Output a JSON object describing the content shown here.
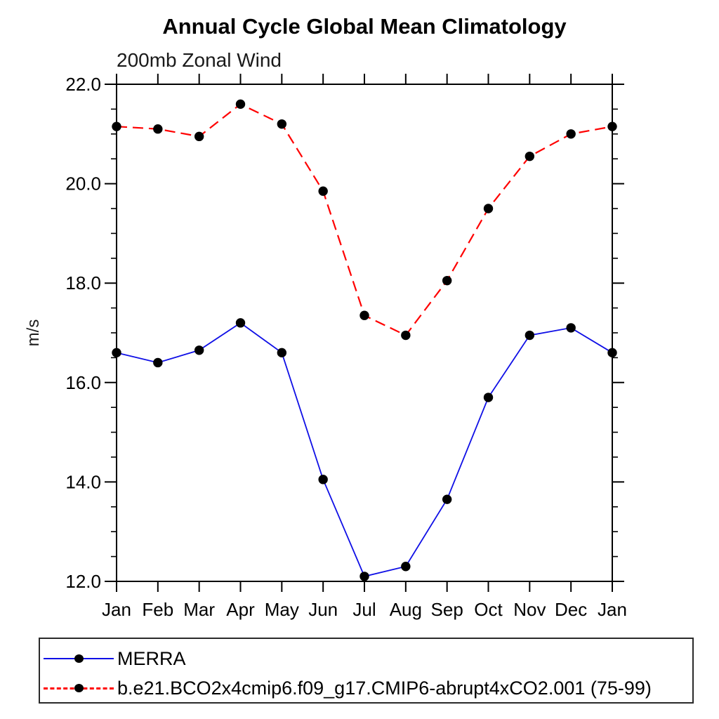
{
  "title": "Annual Cycle Global Mean Climatology",
  "subtitle": "200mb Zonal Wind",
  "chart_data": {
    "type": "line",
    "title": "Annual Cycle Global Mean Climatology",
    "subtitle": "200mb Zonal Wind",
    "xlabel": "",
    "ylabel": "m/s",
    "categories": [
      "Jan",
      "Feb",
      "Mar",
      "Apr",
      "May",
      "Jun",
      "Jul",
      "Aug",
      "Sep",
      "Oct",
      "Nov",
      "Dec",
      "Jan"
    ],
    "ylim": [
      12.0,
      22.0
    ],
    "ytick_major_step": 2.0,
    "ytick_minor_step": 0.5,
    "ytick_labels": [
      "12.0",
      "14.0",
      "16.0",
      "18.0",
      "20.0",
      "22.0"
    ],
    "grid": false,
    "legend_position": "bottom-left-box",
    "series": [
      {
        "name": "MERRA",
        "line_style": "solid",
        "color": "#0f0fe6",
        "marker": "filled-circle",
        "marker_color": "#000000",
        "values": [
          16.6,
          16.4,
          16.65,
          17.2,
          16.6,
          14.05,
          12.1,
          12.3,
          13.65,
          15.7,
          16.95,
          17.1,
          16.6
        ]
      },
      {
        "name": "b.e21.BCO2x4cmip6.f09_g17.CMIP6-abrupt4xCO2.001 (75-99)",
        "line_style": "dashed",
        "color": "#ff0000",
        "marker": "filled-circle",
        "marker_color": "#000000",
        "values": [
          21.15,
          21.1,
          20.95,
          21.6,
          21.2,
          19.85,
          17.35,
          16.95,
          18.05,
          19.5,
          20.55,
          21.0,
          21.15
        ]
      }
    ]
  },
  "colors": {
    "axis": "#000000",
    "text": "#000000",
    "background": "#ffffff",
    "merra_blue": "#0f0fe6",
    "model_red": "#ff0000",
    "marker_black": "#000000"
  }
}
